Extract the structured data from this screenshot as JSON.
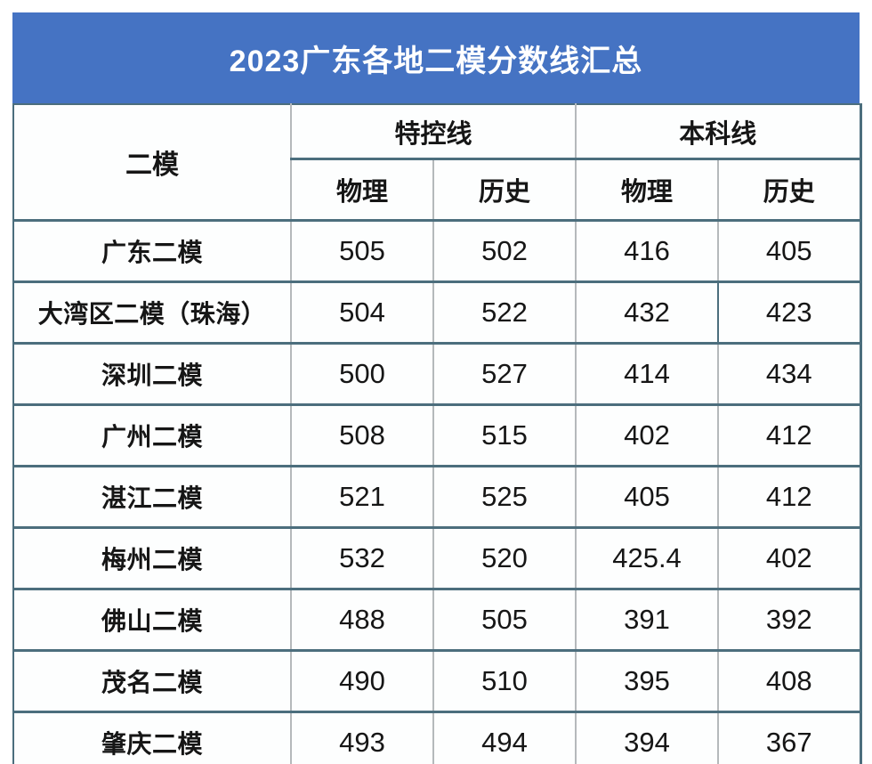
{
  "title": "2023广东各地二模分数线汇总",
  "colors": {
    "title_background": "#4573c3",
    "title_text": "#ffffff",
    "border_dark_slate": "#4c6e7d",
    "border_light_gray": "#b5b9bb",
    "cell_background": "#fdfefe",
    "cell_text": "#161616"
  },
  "table": {
    "corner_header": "二模",
    "group_headers": [
      "特控线",
      "本科线"
    ],
    "sub_headers": [
      "物理",
      "历史",
      "物理",
      "历史"
    ],
    "rows": [
      {
        "label": "广东二模",
        "values": [
          "505",
          "502",
          "416",
          "405"
        ]
      },
      {
        "label": "大湾区二模（珠海）",
        "values": [
          "504",
          "522",
          "432",
          "423"
        ]
      },
      {
        "label": "深圳二模",
        "values": [
          "500",
          "527",
          "414",
          "434"
        ]
      },
      {
        "label": "广州二模",
        "values": [
          "508",
          "515",
          "402",
          "412"
        ]
      },
      {
        "label": "湛江二模",
        "values": [
          "521",
          "525",
          "405",
          "412"
        ]
      },
      {
        "label": "梅州二模",
        "values": [
          "532",
          "520",
          "425.4",
          "402"
        ]
      },
      {
        "label": "佛山二模",
        "values": [
          "488",
          "505",
          "391",
          "392"
        ]
      },
      {
        "label": "茂名二模",
        "values": [
          "490",
          "510",
          "395",
          "408"
        ]
      },
      {
        "label": "肇庆二模",
        "values": [
          "493",
          "494",
          "394",
          "367"
        ]
      }
    ]
  },
  "chart_data": {
    "type": "table",
    "title": "2023广东各地二模分数线汇总",
    "column_groups": [
      {
        "name": "特控线",
        "columns": [
          "物理",
          "历史"
        ]
      },
      {
        "name": "本科线",
        "columns": [
          "物理",
          "历史"
        ]
      }
    ],
    "columns": [
      "二模",
      "特控线-物理",
      "特控线-历史",
      "本科线-物理",
      "本科线-历史"
    ],
    "rows": [
      [
        "广东二模",
        505,
        502,
        416,
        405
      ],
      [
        "大湾区二模（珠海）",
        504,
        522,
        432,
        423
      ],
      [
        "深圳二模",
        500,
        527,
        414,
        434
      ],
      [
        "广州二模",
        508,
        515,
        402,
        412
      ],
      [
        "湛江二模",
        521,
        525,
        405,
        412
      ],
      [
        "梅州二模",
        532,
        520,
        425.4,
        402
      ],
      [
        "佛山二模",
        488,
        505,
        391,
        392
      ],
      [
        "茂名二模",
        490,
        510,
        395,
        408
      ],
      [
        "肇庆二模",
        493,
        494,
        394,
        367
      ]
    ]
  }
}
